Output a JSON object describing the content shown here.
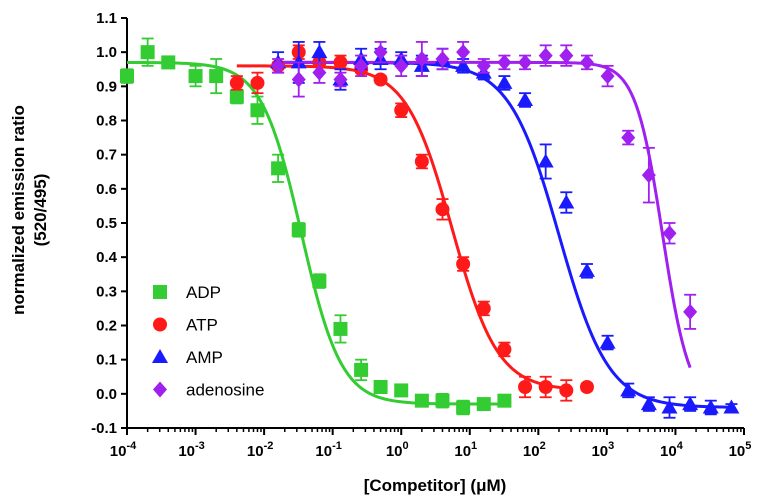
{
  "chart_data": {
    "type": "scatter",
    "xlabel": "[Competitor] (μM)",
    "ylabel_line1": "normalized emission ratio",
    "ylabel_line2": "(520/495)",
    "xscale": "log",
    "xlim": [
      0.0001,
      100000
    ],
    "ylim": [
      -0.1,
      1.1
    ],
    "yticks": [
      -0.1,
      0.0,
      0.1,
      0.2,
      0.3,
      0.4,
      0.5,
      0.6,
      0.7,
      0.8,
      0.9,
      1.0,
      1.1
    ],
    "ytick_labels": [
      "-0.1",
      "0.0",
      "0.1",
      "0.2",
      "0.3",
      "0.4",
      "0.5",
      "0.6",
      "0.7",
      "0.8",
      "0.9",
      "1.0",
      "1.1"
    ],
    "xtick_exponents": [
      -4,
      -3,
      -2,
      -1,
      0,
      1,
      2,
      3,
      4,
      5
    ],
    "xtick_base": "10",
    "grid": false,
    "legend_position": "bottom-left",
    "series": [
      {
        "name": "ADP",
        "color": "#33cc33",
        "marker": "square",
        "fit": {
          "top": 0.97,
          "bottom": -0.03,
          "ic50": 0.035,
          "hill": 1.5,
          "xmin": 0.0001,
          "xmax": 32
        },
        "points": [
          {
            "x": 0.0001,
            "y": 0.93,
            "err": 0.02
          },
          {
            "x": 0.0002,
            "y": 1.0,
            "err": 0.04
          },
          {
            "x": 0.0004,
            "y": 0.97,
            "err": 0.01
          },
          {
            "x": 0.001,
            "y": 0.93,
            "err": 0.03
          },
          {
            "x": 0.002,
            "y": 0.93,
            "err": 0.05
          },
          {
            "x": 0.004,
            "y": 0.87,
            "err": 0.02
          },
          {
            "x": 0.008,
            "y": 0.83,
            "err": 0.04
          },
          {
            "x": 0.016,
            "y": 0.66,
            "err": 0.04
          },
          {
            "x": 0.032,
            "y": 0.48,
            "err": 0.02
          },
          {
            "x": 0.064,
            "y": 0.33,
            "err": 0.02
          },
          {
            "x": 0.13,
            "y": 0.19,
            "err": 0.04
          },
          {
            "x": 0.26,
            "y": 0.07,
            "err": 0.03
          },
          {
            "x": 0.5,
            "y": 0.02,
            "err": 0.01
          },
          {
            "x": 1.0,
            "y": 0.01,
            "err": 0.01
          },
          {
            "x": 2.0,
            "y": -0.02,
            "err": 0.01
          },
          {
            "x": 4.0,
            "y": -0.02,
            "err": 0.02
          },
          {
            "x": 8.0,
            "y": -0.04,
            "err": 0.02
          },
          {
            "x": 16.0,
            "y": -0.03,
            "err": 0.01
          },
          {
            "x": 32.0,
            "y": -0.02,
            "err": 0.01
          }
        ]
      },
      {
        "name": "ATP",
        "color": "#ff1a1a",
        "marker": "circle",
        "fit": {
          "top": 0.96,
          "bottom": 0.01,
          "ic50": 5.5,
          "hill": 1.3,
          "xmin": 0.004,
          "xmax": 256
        },
        "points": [
          {
            "x": 0.004,
            "y": 0.91,
            "err": 0.02
          },
          {
            "x": 0.008,
            "y": 0.91,
            "err": 0.03
          },
          {
            "x": 0.016,
            "y": 0.96,
            "err": 0.01
          },
          {
            "x": 0.032,
            "y": 1.0,
            "err": 0.02
          },
          {
            "x": 0.064,
            "y": 0.97,
            "err": 0.01
          },
          {
            "x": 0.13,
            "y": 0.97,
            "err": 0.02
          },
          {
            "x": 0.26,
            "y": 0.95,
            "err": 0.01
          },
          {
            "x": 0.5,
            "y": 0.92,
            "err": 0.01
          },
          {
            "x": 1.0,
            "y": 0.83,
            "err": 0.02
          },
          {
            "x": 2.0,
            "y": 0.68,
            "err": 0.02
          },
          {
            "x": 4.0,
            "y": 0.54,
            "err": 0.03
          },
          {
            "x": 8.0,
            "y": 0.38,
            "err": 0.02
          },
          {
            "x": 16.0,
            "y": 0.25,
            "err": 0.02
          },
          {
            "x": 32.0,
            "y": 0.13,
            "err": 0.02
          },
          {
            "x": 64.0,
            "y": 0.02,
            "err": 0.03
          },
          {
            "x": 128.0,
            "y": 0.02,
            "err": 0.03
          },
          {
            "x": 256.0,
            "y": 0.01,
            "err": 0.03
          },
          {
            "x": 512.0,
            "y": 0.02,
            "err": 0.01
          }
        ]
      },
      {
        "name": "AMP",
        "color": "#1a1aff",
        "marker": "triangle",
        "fit": {
          "top": 0.97,
          "bottom": -0.04,
          "ic50": 200,
          "hill": 1.2,
          "xmin": 0.016,
          "xmax": 65000
        },
        "points": [
          {
            "x": 0.016,
            "y": 0.97,
            "err": 0.03
          },
          {
            "x": 0.032,
            "y": 0.97,
            "err": 0.06
          },
          {
            "x": 0.064,
            "y": 1.0,
            "err": 0.03
          },
          {
            "x": 0.13,
            "y": 0.92,
            "err": 0.03
          },
          {
            "x": 0.26,
            "y": 0.98,
            "err": 0.03
          },
          {
            "x": 0.5,
            "y": 0.98,
            "err": 0.03
          },
          {
            "x": 1.0,
            "y": 0.98,
            "err": 0.02
          },
          {
            "x": 2.0,
            "y": 0.96,
            "err": 0.03
          },
          {
            "x": 4.0,
            "y": 0.98,
            "err": 0.03
          },
          {
            "x": 8.0,
            "y": 0.96,
            "err": 0.02
          },
          {
            "x": 16.0,
            "y": 0.94,
            "err": 0.02
          },
          {
            "x": 32.0,
            "y": 0.91,
            "err": 0.02
          },
          {
            "x": 64.0,
            "y": 0.86,
            "err": 0.02
          },
          {
            "x": 128.0,
            "y": 0.68,
            "err": 0.05
          },
          {
            "x": 256.0,
            "y": 0.56,
            "err": 0.03
          },
          {
            "x": 512.0,
            "y": 0.36,
            "err": 0.02
          },
          {
            "x": 1024.0,
            "y": 0.15,
            "err": 0.02
          },
          {
            "x": 2048.0,
            "y": 0.01,
            "err": 0.02
          },
          {
            "x": 4096.0,
            "y": -0.03,
            "err": 0.02
          },
          {
            "x": 8192.0,
            "y": -0.04,
            "err": 0.03
          },
          {
            "x": 16384.0,
            "y": -0.03,
            "err": 0.02
          },
          {
            "x": 32768.0,
            "y": -0.04,
            "err": 0.02
          },
          {
            "x": 65536.0,
            "y": -0.04,
            "err": 0.01
          }
        ]
      },
      {
        "name": "adenosine",
        "color": "#a020f0",
        "marker": "diamond",
        "fit": {
          "top": 0.97,
          "bottom": -0.04,
          "ic50": 6500,
          "hill": 2.2,
          "xmin": 0.016,
          "xmax": 16384
        },
        "points": [
          {
            "x": 0.016,
            "y": 0.96,
            "err": 0.02
          },
          {
            "x": 0.032,
            "y": 0.92,
            "err": 0.05
          },
          {
            "x": 0.064,
            "y": 0.94,
            "err": 0.03
          },
          {
            "x": 0.13,
            "y": 0.92,
            "err": 0.02
          },
          {
            "x": 0.26,
            "y": 0.96,
            "err": 0.03
          },
          {
            "x": 0.5,
            "y": 1.0,
            "err": 0.03
          },
          {
            "x": 1.0,
            "y": 0.96,
            "err": 0.03
          },
          {
            "x": 2.0,
            "y": 0.98,
            "err": 0.05
          },
          {
            "x": 4.0,
            "y": 0.98,
            "err": 0.03
          },
          {
            "x": 8.0,
            "y": 1.0,
            "err": 0.03
          },
          {
            "x": 16.0,
            "y": 0.96,
            "err": 0.02
          },
          {
            "x": 32.0,
            "y": 0.97,
            "err": 0.02
          },
          {
            "x": 64.0,
            "y": 0.97,
            "err": 0.02
          },
          {
            "x": 128.0,
            "y": 0.99,
            "err": 0.03
          },
          {
            "x": 256.0,
            "y": 0.99,
            "err": 0.03
          },
          {
            "x": 512.0,
            "y": 0.97,
            "err": 0.02
          },
          {
            "x": 1024.0,
            "y": 0.93,
            "err": 0.03
          },
          {
            "x": 2048.0,
            "y": 0.75,
            "err": 0.02
          },
          {
            "x": 4096.0,
            "y": 0.64,
            "err": 0.08
          },
          {
            "x": 8192.0,
            "y": 0.47,
            "err": 0.03
          },
          {
            "x": 16384.0,
            "y": 0.24,
            "err": 0.05
          }
        ]
      }
    ]
  }
}
